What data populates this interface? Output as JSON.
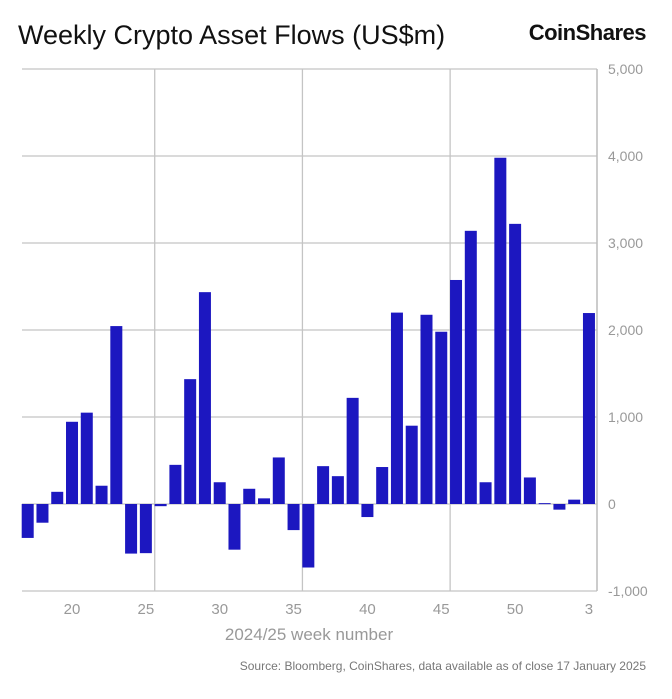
{
  "chart_data": {
    "type": "bar",
    "title": "Weekly Crypto Asset Flows (US$m)",
    "xlabel": "2024/25 week number",
    "ylabel": "",
    "ylim": [
      -1000,
      5000
    ],
    "yticks": [
      -1000,
      0,
      1000,
      2000,
      3000,
      4000,
      5000
    ],
    "ytick_labels": [
      "-1,000",
      "0",
      "1,000",
      "2,000",
      "3,000",
      "4,000",
      "5,000"
    ],
    "xtick_labels": [
      {
        "label": "20",
        "index": 3
      },
      {
        "label": "25",
        "index": 8
      },
      {
        "label": "30",
        "index": 13
      },
      {
        "label": "35",
        "index": 18
      },
      {
        "label": "40",
        "index": 23
      },
      {
        "label": "45",
        "index": 28
      },
      {
        "label": "50",
        "index": 33
      },
      {
        "label": "3",
        "index": 38
      }
    ],
    "categories": [
      "17",
      "18",
      "19",
      "20",
      "21",
      "22",
      "23",
      "24",
      "25",
      "26",
      "27",
      "28",
      "29",
      "30",
      "31",
      "32",
      "33",
      "34",
      "35",
      "36",
      "37",
      "38",
      "39",
      "40",
      "41",
      "42",
      "43",
      "44",
      "45",
      "46",
      "47",
      "48",
      "49",
      "50",
      "51",
      "52",
      "1",
      "2",
      "3"
    ],
    "values": [
      -390,
      -215,
      140,
      945,
      1050,
      210,
      2045,
      -570,
      -565,
      -25,
      450,
      1435,
      2435,
      250,
      -525,
      175,
      65,
      535,
      -300,
      -730,
      435,
      320,
      1220,
      -150,
      425,
      2200,
      900,
      2175,
      1980,
      2575,
      3140,
      250,
      3980,
      3220,
      305,
      10,
      -65,
      50,
      2195
    ],
    "bar_color": "#1c17c0",
    "grid": true,
    "y_axis_side": "right"
  },
  "brand": "CoinShares",
  "source": "Source: Bloomberg, CoinShares, data available as of close 17 January 2025"
}
